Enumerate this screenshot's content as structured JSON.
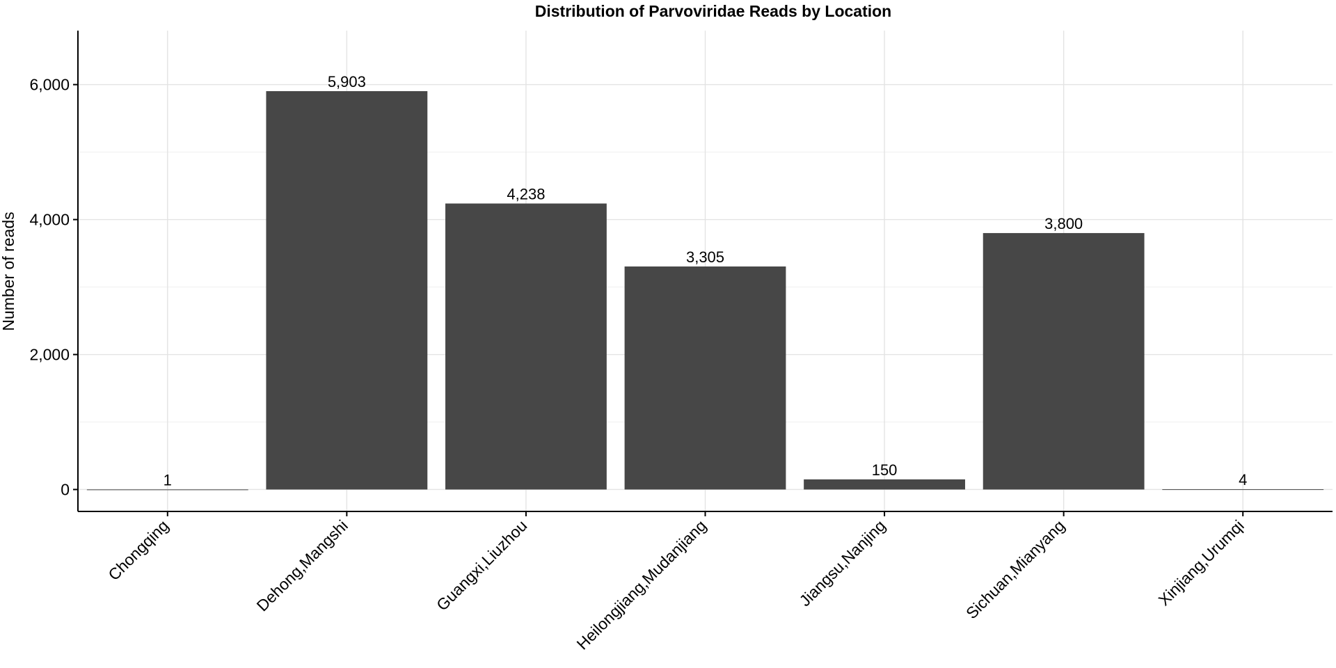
{
  "chart_data": {
    "type": "bar",
    "title": "Distribution of Parvoviridae Reads by Location",
    "xlabel": "",
    "ylabel": "Number of reads",
    "categories": [
      "Chongqing",
      "Dehong,Mangshi",
      "Guangxi,Liuzhou",
      "Heilongjiang,Mudanjiang",
      "Jiangsu,Nanjing",
      "Sichuan,Mianyang",
      "Xinjiang,Urumqi"
    ],
    "values": [
      1,
      5903,
      4238,
      3305,
      150,
      3800,
      4
    ],
    "value_labels": [
      "1",
      "5,903",
      "4,238",
      "3,305",
      "150",
      "3,800",
      "4"
    ],
    "yticks": [
      0,
      2000,
      4000,
      6000
    ],
    "ytick_labels": [
      "0",
      "2,000",
      "4,000",
      "6,000"
    ],
    "ylim": [
      -325,
      6800
    ],
    "grid": true,
    "legend": "none",
    "colors": {
      "bar": "#474747",
      "grid_major": "#e3e3e3",
      "grid_minor": "#f1f1f1",
      "axis": "#000000"
    }
  }
}
